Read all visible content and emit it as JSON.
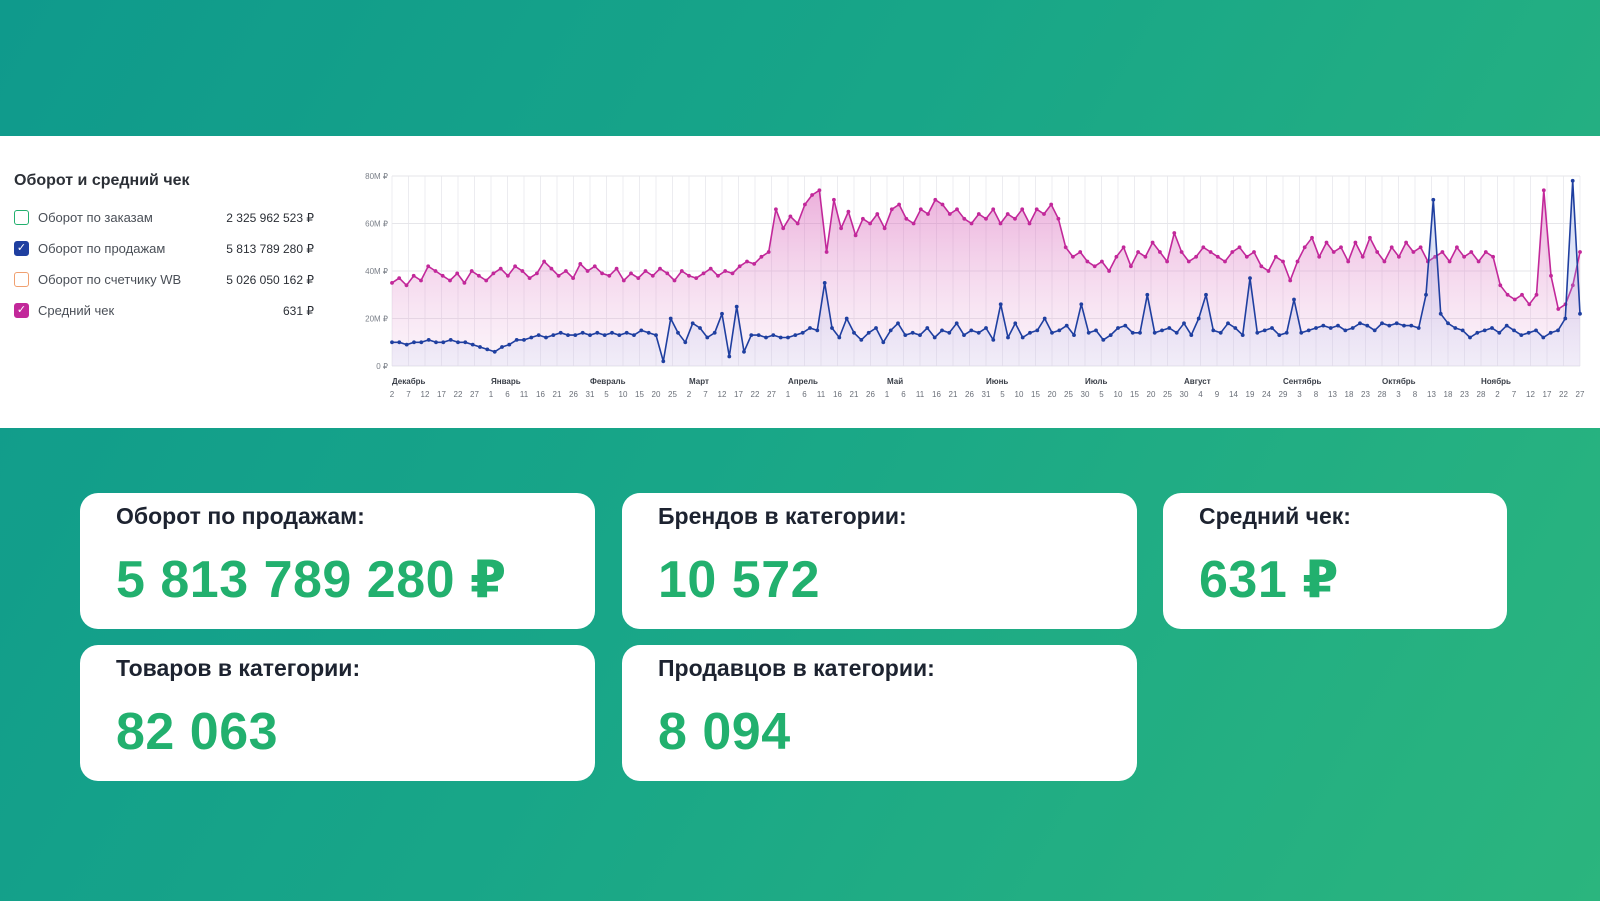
{
  "chart_data": {
    "type": "line",
    "title": "Оборот и средний чек",
    "legend": [
      {
        "label": "Оборот по заказам",
        "value": "2 325 962 523 ₽",
        "checked": false,
        "color": "#22b06e"
      },
      {
        "label": "Оборот по продажам",
        "value": "5 813 789 280 ₽",
        "checked": true,
        "color": "#1f3fa0"
      },
      {
        "label": "Оборот по счетчику WB",
        "value": "5 026 050 162 ₽",
        "checked": false,
        "color": "#f0a070"
      },
      {
        "label": "Средний чек",
        "value": "631 ₽",
        "checked": true,
        "color": "#c2289a"
      }
    ],
    "y_ticks": [
      "80M ₽",
      "60M ₽",
      "40M ₽",
      "20M ₽",
      "0 ₽"
    ],
    "ylim": [
      0,
      80
    ],
    "months": [
      "Декабрь",
      "Январь",
      "Февраль",
      "Март",
      "Апрель",
      "Май",
      "Июнь",
      "Июль",
      "Август",
      "Сентябрь",
      "Октябрь",
      "Ноябрь"
    ],
    "day_ticks": [
      "2",
      "7",
      "12",
      "17",
      "22",
      "27",
      "1",
      "6",
      "11",
      "16",
      "21",
      "26",
      "31",
      "5",
      "10",
      "15",
      "20",
      "25",
      "2",
      "7",
      "12",
      "17",
      "22",
      "27",
      "1",
      "6",
      "11",
      "16",
      "21",
      "26",
      "1",
      "6",
      "11",
      "16",
      "21",
      "26",
      "31",
      "5",
      "10",
      "15",
      "20",
      "25",
      "30",
      "5",
      "10",
      "15",
      "20",
      "25",
      "30",
      "4",
      "9",
      "14",
      "19",
      "24",
      "29",
      "3",
      "8",
      "13",
      "18",
      "23",
      "28",
      "3",
      "8",
      "13",
      "18",
      "23",
      "28",
      "2",
      "7",
      "12",
      "17",
      "22",
      "27"
    ],
    "series": [
      {
        "name": "Средний чек",
        "color": "#c2289a",
        "values": [
          35,
          37,
          34,
          38,
          36,
          42,
          40,
          38,
          36,
          39,
          35,
          40,
          38,
          36,
          39,
          41,
          38,
          42,
          40,
          37,
          39,
          44,
          41,
          38,
          40,
          37,
          43,
          40,
          42,
          39,
          38,
          41,
          36,
          39,
          37,
          40,
          38,
          41,
          39,
          36,
          40,
          38,
          37,
          39,
          41,
          38,
          40,
          39,
          42,
          44,
          43,
          46,
          48,
          66,
          58,
          63,
          60,
          68,
          72,
          74,
          48,
          70,
          58,
          65,
          55,
          62,
          60,
          64,
          58,
          66,
          68,
          62,
          60,
          66,
          64,
          70,
          68,
          64,
          66,
          62,
          60,
          64,
          62,
          66,
          60,
          64,
          62,
          66,
          60,
          66,
          64,
          68,
          62,
          50,
          46,
          48,
          44,
          42,
          44,
          40,
          46,
          50,
          42,
          48,
          46,
          52,
          48,
          44,
          56,
          48,
          44,
          46,
          50,
          48,
          46,
          44,
          48,
          50,
          46,
          48,
          42,
          40,
          46,
          44,
          36,
          44,
          50,
          54,
          46,
          52,
          48,
          50,
          44,
          52,
          46,
          54,
          48,
          44,
          50,
          46,
          52,
          48,
          50,
          44,
          46,
          48,
          44,
          50,
          46,
          48,
          44,
          48,
          46,
          34,
          30,
          28,
          30,
          26,
          30,
          74,
          38,
          24,
          26,
          34,
          48
        ]
      },
      {
        "name": "Оборот по продажам",
        "color": "#1f3fa0",
        "values": [
          10,
          10,
          9,
          10,
          10,
          11,
          10,
          10,
          11,
          10,
          10,
          9,
          8,
          7,
          6,
          8,
          9,
          11,
          11,
          12,
          13,
          12,
          13,
          14,
          13,
          13,
          14,
          13,
          14,
          13,
          14,
          13,
          14,
          13,
          15,
          14,
          13,
          2,
          20,
          14,
          10,
          18,
          16,
          12,
          14,
          22,
          4,
          25,
          6,
          13,
          13,
          12,
          13,
          12,
          12,
          13,
          14,
          16,
          15,
          35,
          16,
          12,
          20,
          14,
          11,
          14,
          16,
          10,
          15,
          18,
          13,
          14,
          13,
          16,
          12,
          15,
          14,
          18,
          13,
          15,
          14,
          16,
          11,
          26,
          12,
          18,
          12,
          14,
          15,
          20,
          14,
          15,
          17,
          13,
          26,
          14,
          15,
          11,
          13,
          16,
          17,
          14,
          14,
          30,
          14,
          15,
          16,
          14,
          18,
          13,
          20,
          30,
          15,
          14,
          18,
          16,
          13,
          37,
          14,
          15,
          16,
          13,
          14,
          28,
          14,
          15,
          16,
          17,
          16,
          17,
          15,
          16,
          18,
          17,
          15,
          18,
          17,
          18,
          17,
          17,
          16,
          30,
          70,
          22,
          18,
          16,
          15,
          12,
          14,
          15,
          16,
          14,
          17,
          15,
          13,
          14,
          15,
          12,
          14,
          15,
          20,
          78,
          22
        ]
      }
    ]
  },
  "cards": [
    {
      "label": "Оборот по продажам:",
      "value": "5 813 789 280 ₽"
    },
    {
      "label": "Брендов в категории:",
      "value": "10 572"
    },
    {
      "label": "Средний чек:",
      "value": "631 ₽"
    },
    {
      "label": "Товаров в категории:",
      "value": "82 063"
    },
    {
      "label": "Продавцов в категории:",
      "value": "8 094"
    }
  ]
}
